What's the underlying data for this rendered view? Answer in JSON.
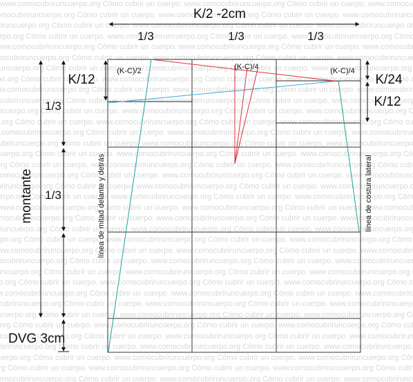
{
  "watermark": "www.comocubriruncuerpo.org Cómo cubrir un cuerpo.",
  "labels": {
    "top_width": "K/2 -2cm",
    "third_1": "1/3",
    "third_2": "1/3",
    "third_3": "1/3",
    "k12_left": "K/12",
    "kc2": "(K-C)/2",
    "kc4_mid": "(K-C)/4",
    "kc4_right": "(K-C)/4",
    "k24": "K/24",
    "k12_right": "K/12",
    "left_third_1": "1/3",
    "left_third_2": "1/3",
    "montante": "montante",
    "dvg": "DVG 3cm",
    "center_line": "línea de mitad delante y detrás",
    "side_seam": "línea de costura lateral"
  },
  "colors": {
    "grid": "#333333",
    "teal": "#1aa39a",
    "blue": "#3ba6d8",
    "red": "#e0303a",
    "watermark": "#d8d8d8"
  }
}
